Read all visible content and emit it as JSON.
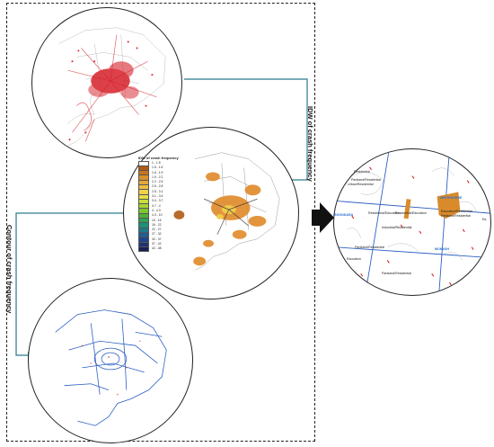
{
  "labels": {
    "idw_arrow": "IDW of crash frequency",
    "contour_arrow": "Contour of crash frequency"
  },
  "legend": {
    "title": "IDW of crash frequency",
    "entries": [
      {
        "label": "1 - 1.5",
        "color": "#ffffff"
      },
      {
        "label": "1.5 - 1.6",
        "color": "#b15a14"
      },
      {
        "label": "1.6 - 1.9",
        "color": "#c8741f"
      },
      {
        "label": "1.9 - 2.2",
        "color": "#d98f2a"
      },
      {
        "label": "2.2 - 2.5",
        "color": "#e6a738"
      },
      {
        "label": "2.5 - 2.8",
        "color": "#eebd43"
      },
      {
        "label": "2.8 - 3.1",
        "color": "#f1d04a"
      },
      {
        "label": "3.1 - 3.4",
        "color": "#e7df46"
      },
      {
        "label": "3.4 - 3.7",
        "color": "#c9de3d"
      },
      {
        "label": "3.7 - 4",
        "color": "#a6d436"
      },
      {
        "label": "4 - 4.3",
        "color": "#7fc532"
      },
      {
        "label": "4.3 - 10",
        "color": "#4fb235"
      },
      {
        "label": "10 - 16",
        "color": "#2fa05a"
      },
      {
        "label": "16 - 22",
        "color": "#1f8f78"
      },
      {
        "label": "22 - 27",
        "color": "#1c7a8b"
      },
      {
        "label": "27 - 32",
        "color": "#1d5f92"
      },
      {
        "label": "32 - 37",
        "color": "#1f468c"
      },
      {
        "label": "37 - 42",
        "color": "#1f3273"
      },
      {
        "label": "42 - 48",
        "color": "#1b1f56"
      }
    ]
  },
  "zoom_labels": {
    "boroondara": "BOONDARA",
    "whitehorse": "WHITEHORSE",
    "monash": "MONASH",
    "res1": "Residential",
    "res2": "Parkland/Residential",
    "res3": "Urban/Residential",
    "mix1": "Residential/Education",
    "mix2": "Residential/Education",
    "mix3": "Industrial/Residential",
    "mix4": "Education/Residential",
    "mix5": "Parkland/Residential",
    "mix6": "Parkland/Residential",
    "mix7": "Education",
    "mix8": "Parkland/Residential",
    "ea": "Ea"
  },
  "colors": {
    "crash_red": "#d6202a",
    "idw_orange": "#e08a2a",
    "contour_blue": "#2d5fc4",
    "frame": "#222222"
  }
}
